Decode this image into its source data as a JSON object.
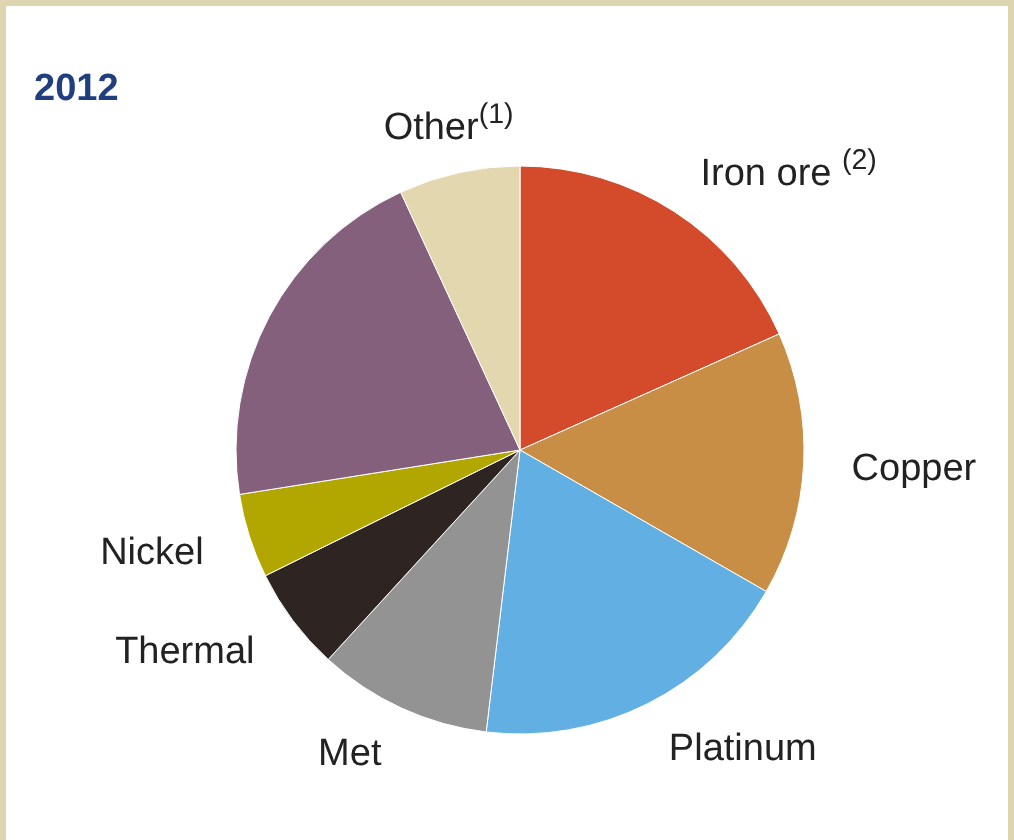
{
  "chart_data": {
    "type": "pie",
    "title": "2012",
    "categories": [
      "Iron ore $^{(2)}$",
      "Copper",
      "Platinum",
      "Met",
      "Thermal",
      "Nickel",
      null,
      "Other$^{(1)}$"
    ],
    "values": [
      18.3,
      15.0,
      18.6,
      9.9,
      5.9,
      4.8,
      20.6,
      6.9
    ],
    "colors": [
      "#d34b2a",
      "#c98e45",
      "#62b0e3",
      "#939393",
      "#2e2523",
      "#b2a600",
      "#85607c",
      "#e3d7b0"
    ]
  }
}
